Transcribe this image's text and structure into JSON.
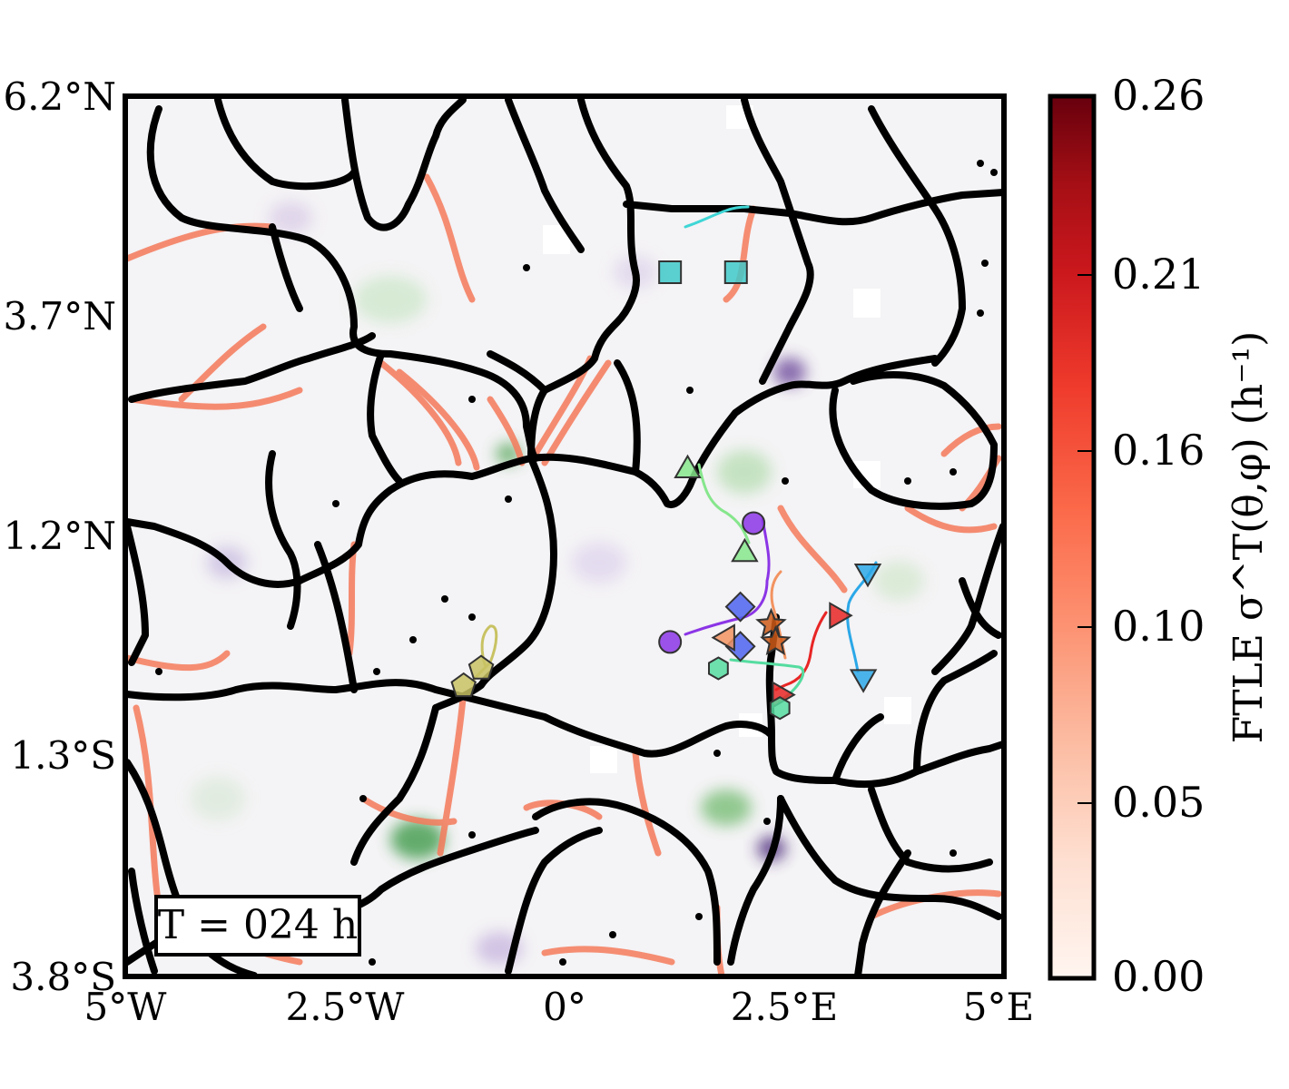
{
  "chart_data": {
    "type": "heatmap",
    "title": "",
    "xlabel": "",
    "ylabel": "",
    "x_ticks": [
      {
        "value": -5.0,
        "label": "5°W"
      },
      {
        "value": -2.5,
        "label": "2.5°W"
      },
      {
        "value": 0.0,
        "label": "0°"
      },
      {
        "value": 2.5,
        "label": "2.5°E"
      },
      {
        "value": 5.0,
        "label": "5°E"
      }
    ],
    "y_ticks": [
      {
        "value": 6.2,
        "label": "6.2°N"
      },
      {
        "value": 3.7,
        "label": "3.7°N"
      },
      {
        "value": 1.2,
        "label": "1.2°N"
      },
      {
        "value": -1.3,
        "label": "1.3°S"
      },
      {
        "value": -3.8,
        "label": "3.8°S"
      }
    ],
    "xlim": [
      -5.0,
      5.0
    ],
    "ylim": [
      -3.8,
      6.2
    ],
    "grid": false,
    "annotation": "T = 024 h",
    "colorbar": {
      "label": "FTLE σ^T(θ,φ) (h⁻¹)",
      "colormap": "Reds",
      "range": [
        0.0,
        0.26
      ],
      "ticks": [
        "0.00",
        "0.05",
        "0.10",
        "0.16",
        "0.21",
        "0.26"
      ]
    },
    "markers": [
      {
        "shape": "square",
        "color": "#3fc9c9",
        "x": 1.2,
        "y": 4.2
      },
      {
        "shape": "square",
        "color": "#3fc9c9",
        "x": 1.95,
        "y": 4.2
      },
      {
        "shape": "triangle-up",
        "color": "#86e68c",
        "x": 1.4,
        "y": 1.95
      },
      {
        "shape": "triangle-up",
        "color": "#86e68c",
        "x": 2.05,
        "y": 1.0
      },
      {
        "shape": "circle",
        "color": "#8b35e6",
        "x": 2.15,
        "y": 1.35
      },
      {
        "shape": "circle",
        "color": "#8b35e6",
        "x": 1.2,
        "y": 0.0
      },
      {
        "shape": "triangle-down",
        "color": "#2ba8e8",
        "x": 3.45,
        "y": 0.8
      },
      {
        "shape": "triangle-down",
        "color": "#2ba8e8",
        "x": 3.4,
        "y": -0.4
      },
      {
        "shape": "triangle-right",
        "color": "#e82525",
        "x": 3.1,
        "y": 0.3
      },
      {
        "shape": "triangle-right",
        "color": "#e82525",
        "x": 2.45,
        "y": -0.6
      },
      {
        "shape": "diamond",
        "color": "#4e63ee",
        "x": 2.0,
        "y": 0.4
      },
      {
        "shape": "diamond",
        "color": "#4e63ee",
        "x": 2.0,
        "y": -0.05
      },
      {
        "shape": "triangle-left",
        "color": "#f29360",
        "x": 1.85,
        "y": 0.05
      },
      {
        "shape": "star",
        "color": "#cf5a18",
        "x": 2.35,
        "y": 0.2
      },
      {
        "shape": "star",
        "color": "#cf5a18",
        "x": 2.4,
        "y": 0.0
      },
      {
        "shape": "hexagon",
        "color": "#55dca0",
        "x": 1.75,
        "y": -0.3
      },
      {
        "shape": "hexagon",
        "color": "#55dca0",
        "x": 2.45,
        "y": -0.75
      },
      {
        "shape": "pentagon",
        "color": "#c8c263",
        "x": -0.95,
        "y": -0.3
      },
      {
        "shape": "pentagon",
        "color": "#c8c263",
        "x": -1.15,
        "y": -0.5
      }
    ]
  }
}
